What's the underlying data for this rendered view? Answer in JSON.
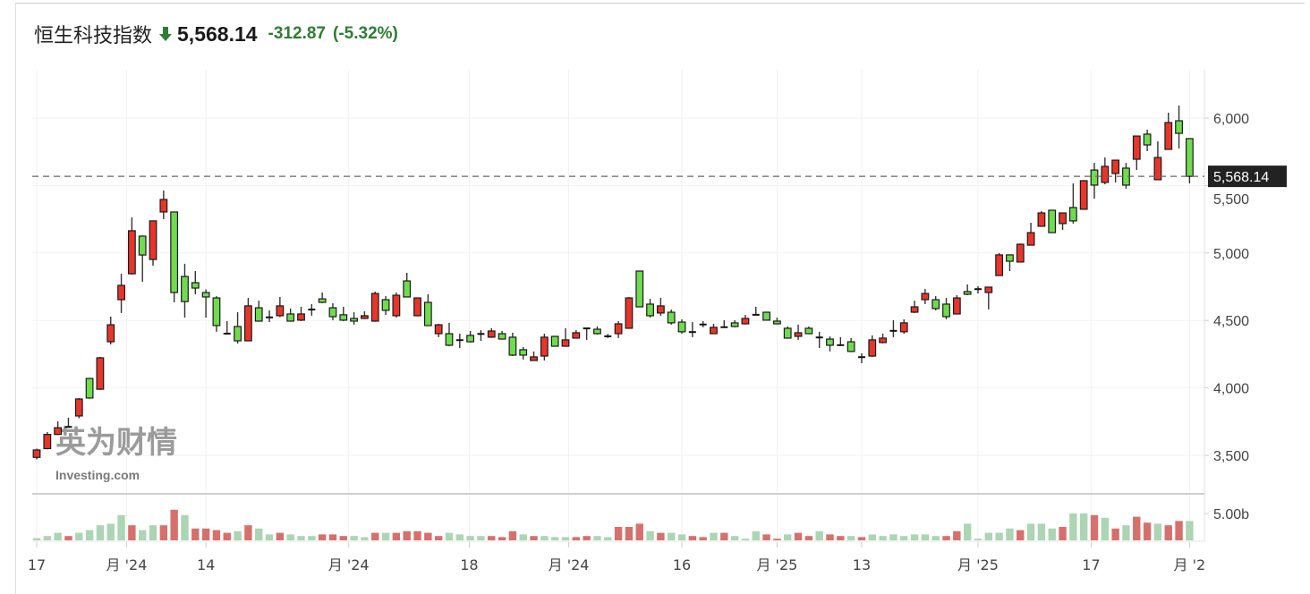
{
  "header": {
    "title": "恒生科技指数",
    "direction_icon": "arrow-down-icon",
    "price": "5,568.14",
    "change": "-312.87",
    "change_pct": "(-5.32%)"
  },
  "watermark": {
    "cn": "英为财情",
    "en": "Investing.com"
  },
  "colors": {
    "up": "#e8352a",
    "down": "#6fdb4e",
    "vol_up": "#d6706c",
    "vol_down": "#acd5b3",
    "change": "#2e7d32",
    "badge": "#222222"
  },
  "chart_data": {
    "type": "candlestick",
    "up_color_convention": "red up / green down",
    "price_axis": {
      "ticks": [
        6000,
        5500,
        5000,
        4500,
        4000,
        3500
      ],
      "tick_labels": [
        "6,000",
        "5,500",
        "5,000",
        "4,500",
        "4,000",
        "3,500"
      ],
      "position": "right"
    },
    "last_price_label": "5,568.14",
    "last_price": 5568.14,
    "volume_axis": {
      "tick": 5,
      "tick_label": "5.00b",
      "unit": "billion"
    },
    "x_ticks": [
      {
        "label": "17",
        "at_candle": 0
      },
      {
        "label": "月 '24",
        "at_candle": 8.5
      },
      {
        "label": "14",
        "at_candle": 16
      },
      {
        "label": "月 '24",
        "at_candle": 29.5
      },
      {
        "label": "18",
        "at_candle": 40.9
      },
      {
        "label": "月 '24",
        "at_candle": 50.3
      },
      {
        "label": "16",
        "at_candle": 61
      },
      {
        "label": "月 '25",
        "at_candle": 70
      },
      {
        "label": "13",
        "at_candle": 78
      },
      {
        "label": "月 '25",
        "at_candle": 89
      },
      {
        "label": "17",
        "at_candle": 99.7
      },
      {
        "label": "月 '2",
        "at_candle": 109
      }
    ],
    "grid": true,
    "ohlc": [
      [
        3485,
        3550,
        3470,
        3540
      ],
      [
        3550,
        3673,
        3545,
        3655
      ],
      [
        3655,
        3752,
        3650,
        3705
      ],
      [
        3710,
        3779,
        3705,
        3712
      ],
      [
        3792,
        3925,
        3775,
        3918
      ],
      [
        4070,
        4075,
        3920,
        3925
      ],
      [
        3990,
        4230,
        3985,
        4223
      ],
      [
        4342,
        4528,
        4322,
        4468
      ],
      [
        4654,
        4846,
        4555,
        4760
      ],
      [
        4846,
        5264,
        4840,
        5165
      ],
      [
        5125,
        5130,
        4787,
        4985
      ],
      [
        4952,
        5240,
        4906,
        5238
      ],
      [
        5304,
        5463,
        5251,
        5397
      ],
      [
        5304,
        5304,
        4634,
        4707
      ],
      [
        4826,
        4920,
        4521,
        4640
      ],
      [
        4780,
        4866,
        4694,
        4740
      ],
      [
        4707,
        4730,
        4521,
        4674
      ],
      [
        4667,
        4680,
        4416,
        4462
      ],
      [
        4405,
        4495,
        4395,
        4400
      ],
      [
        4455,
        4561,
        4329,
        4349
      ],
      [
        4349,
        4667,
        4345,
        4608
      ],
      [
        4594,
        4647,
        4490,
        4495
      ],
      [
        4525,
        4575,
        4488,
        4521
      ],
      [
        4535,
        4674,
        4525,
        4608
      ],
      [
        4548,
        4588,
        4490,
        4495
      ],
      [
        4502,
        4601,
        4495,
        4548
      ],
      [
        4580,
        4621,
        4535,
        4582
      ],
      [
        4660,
        4707,
        4628,
        4634
      ],
      [
        4594,
        4628,
        4502,
        4528
      ],
      [
        4542,
        4601,
        4495,
        4502
      ],
      [
        4515,
        4561,
        4469,
        4495
      ],
      [
        4515,
        4568,
        4510,
        4535
      ],
      [
        4495,
        4714,
        4490,
        4700
      ],
      [
        4654,
        4680,
        4541,
        4575
      ],
      [
        4535,
        4707,
        4521,
        4687
      ],
      [
        4793,
        4853,
        4670,
        4674
      ],
      [
        4535,
        4670,
        4530,
        4667
      ],
      [
        4634,
        4694,
        4458,
        4462
      ],
      [
        4402,
        4475,
        4376,
        4468
      ],
      [
        4402,
        4482,
        4309,
        4316
      ],
      [
        4356,
        4402,
        4296,
        4352
      ],
      [
        4389,
        4422,
        4336,
        4342
      ],
      [
        4402,
        4429,
        4349,
        4398
      ],
      [
        4376,
        4442,
        4370,
        4422
      ],
      [
        4402,
        4422,
        4358,
        4362
      ],
      [
        4376,
        4409,
        4236,
        4243
      ],
      [
        4283,
        4303,
        4210,
        4243
      ],
      [
        4203,
        4270,
        4200,
        4230
      ],
      [
        4236,
        4402,
        4203,
        4376
      ],
      [
        4382,
        4385,
        4305,
        4309
      ],
      [
        4309,
        4442,
        4305,
        4356
      ],
      [
        4369,
        4429,
        4365,
        4409
      ],
      [
        4442,
        4445,
        4356,
        4440
      ],
      [
        4435,
        4455,
        4395,
        4402
      ],
      [
        4383,
        4400,
        4370,
        4382
      ],
      [
        4402,
        4495,
        4370,
        4475
      ],
      [
        4442,
        4674,
        4438,
        4667
      ],
      [
        4866,
        4870,
        4598,
        4601
      ],
      [
        4621,
        4660,
        4521,
        4535
      ],
      [
        4555,
        4667,
        4535,
        4608
      ],
      [
        4561,
        4581,
        4469,
        4482
      ],
      [
        4488,
        4508,
        4402,
        4416
      ],
      [
        4416,
        4488,
        4376,
        4412
      ],
      [
        4472,
        4495,
        4449,
        4468
      ],
      [
        4402,
        4475,
        4398,
        4449
      ],
      [
        4449,
        4502,
        4445,
        4451
      ],
      [
        4482,
        4502,
        4449,
        4455
      ],
      [
        4475,
        4541,
        4470,
        4515
      ],
      [
        4541,
        4601,
        4538,
        4543
      ],
      [
        4561,
        4565,
        4500,
        4502
      ],
      [
        4495,
        4521,
        4470,
        4475
      ],
      [
        4442,
        4455,
        4365,
        4369
      ],
      [
        4382,
        4469,
        4356,
        4409
      ],
      [
        4442,
        4455,
        4398,
        4402
      ],
      [
        4376,
        4416,
        4296,
        4372
      ],
      [
        4362,
        4382,
        4270,
        4316
      ],
      [
        4316,
        4376,
        4312,
        4318
      ],
      [
        4342,
        4369,
        4265,
        4270
      ],
      [
        4230,
        4256,
        4183,
        4226
      ],
      [
        4236,
        4389,
        4230,
        4356
      ],
      [
        4336,
        4402,
        4330,
        4369
      ],
      [
        4422,
        4502,
        4376,
        4424
      ],
      [
        4416,
        4508,
        4402,
        4482
      ],
      [
        4561,
        4647,
        4555,
        4601
      ],
      [
        4654,
        4734,
        4621,
        4700
      ],
      [
        4654,
        4680,
        4575,
        4588
      ],
      [
        4621,
        4667,
        4508,
        4528
      ],
      [
        4548,
        4687,
        4545,
        4667
      ],
      [
        4714,
        4767,
        4687,
        4694
      ],
      [
        4734,
        4754,
        4700,
        4730
      ],
      [
        4707,
        4750,
        4582,
        4747
      ],
      [
        4833,
        5000,
        4830,
        4986
      ],
      [
        4986,
        4990,
        4866,
        4939
      ],
      [
        4933,
        5070,
        4930,
        5065
      ],
      [
        5058,
        5224,
        5055,
        5151
      ],
      [
        5198,
        5310,
        5195,
        5297
      ],
      [
        5317,
        5320,
        5148,
        5151
      ],
      [
        5218,
        5300,
        5171,
        5297
      ],
      [
        5337,
        5516,
        5218,
        5238
      ],
      [
        5324,
        5540,
        5320,
        5536
      ],
      [
        5615,
        5668,
        5403,
        5503
      ],
      [
        5523,
        5708,
        5509,
        5642
      ],
      [
        5589,
        5692,
        5523,
        5688
      ],
      [
        5629,
        5668,
        5476,
        5503
      ],
      [
        5695,
        5870,
        5615,
        5867
      ],
      [
        5881,
        5914,
        5755,
        5801
      ],
      [
        5543,
        5828,
        5540,
        5708
      ],
      [
        5768,
        6040,
        5765,
        5967
      ],
      [
        5980,
        6093,
        5775,
        5887
      ],
      [
        5848,
        5850,
        5516,
        5568.14
      ]
    ],
    "volume": [
      0.4,
      0.8,
      1.4,
      0.8,
      1.4,
      1.9,
      2.8,
      3.1,
      4.7,
      2.8,
      1.9,
      2.8,
      2.8,
      5.7,
      4.7,
      2.2,
      2.2,
      1.9,
      1.4,
      1.7,
      2.8,
      2.2,
      1.1,
      1.4,
      1.1,
      0.8,
      0.8,
      1.1,
      1.1,
      0.8,
      0.8,
      0.6,
      1.4,
      1.4,
      1.4,
      1.7,
      1.7,
      1.4,
      0.8,
      1.4,
      1.1,
      0.8,
      0.8,
      0.8,
      0.6,
      1.7,
      1.1,
      0.8,
      0.8,
      0.6,
      0.6,
      0.6,
      0.8,
      0.8,
      0.6,
      2.5,
      2.5,
      3.1,
      1.7,
      1.4,
      1.4,
      1.1,
      0.8,
      0.6,
      1.4,
      1.4,
      0.8,
      0.3,
      1.7,
      1.1,
      0.3,
      1.1,
      1.4,
      0.8,
      1.7,
      1.1,
      0.8,
      0.8,
      0.6,
      1.1,
      0.8,
      1.1,
      0.8,
      1.1,
      1.1,
      0.8,
      0.8,
      1.7,
      3.1,
      0.3,
      1.4,
      1.4,
      2.2,
      1.9,
      3.1,
      3.1,
      2.2,
      2.5,
      5.0,
      5.0,
      4.7,
      4.2,
      2.2,
      2.8,
      4.4,
      3.3,
      3.1,
      2.8,
      3.6,
      3.6
    ],
    "volume_colors": "ggg rgggggrggrrgrrrrgrggrggg rrrggrgrrrrrgggg rrrgr gggrrggrrrgrggr rgrgggrrgrrgrrgrgggggggrrggggg rgggrggrgrgrrgrr"
  }
}
